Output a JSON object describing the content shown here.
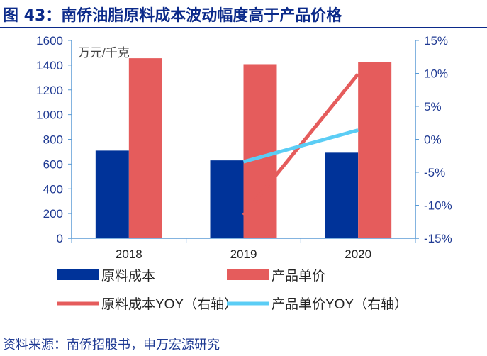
{
  "title": "图 43：南侨油脂原料成本波动幅度高于产品价格",
  "source": "资料来源：南侨招股书，申万宏源研究",
  "chart_data": {
    "type": "bar+line",
    "categories": [
      "2018",
      "2019",
      "2020"
    ],
    "left_unit": "万元/千克",
    "ylim": [
      0,
      1600
    ],
    "yticks": [
      "0",
      "200",
      "400",
      "600",
      "800",
      "1000",
      "1200",
      "1400",
      "1600"
    ],
    "y2lim": [
      -15,
      15
    ],
    "y2ticks": [
      "-15%",
      "-10%",
      "-5%",
      "0%",
      "5%",
      "10%",
      "15%"
    ],
    "series": [
      {
        "name": "原料成本",
        "type": "bar",
        "axis": "left",
        "color": "#003399",
        "values": [
          709,
          630,
          692
        ]
      },
      {
        "name": "产品单价",
        "type": "bar",
        "axis": "left",
        "color": "#e55c5c",
        "values": [
          1456,
          1408,
          1426
        ]
      },
      {
        "name": "原料成本YOY（右轴）",
        "type": "line",
        "axis": "right",
        "color": "#e55c5c",
        "values": [
          null,
          -11.5,
          9.9
        ]
      },
      {
        "name": "产品单价YOY（右轴）",
        "type": "line",
        "axis": "right",
        "color": "#5bcdf5",
        "values": [
          null,
          -3.4,
          1.4
        ]
      }
    ],
    "legend_position": "bottom",
    "grid": false
  }
}
